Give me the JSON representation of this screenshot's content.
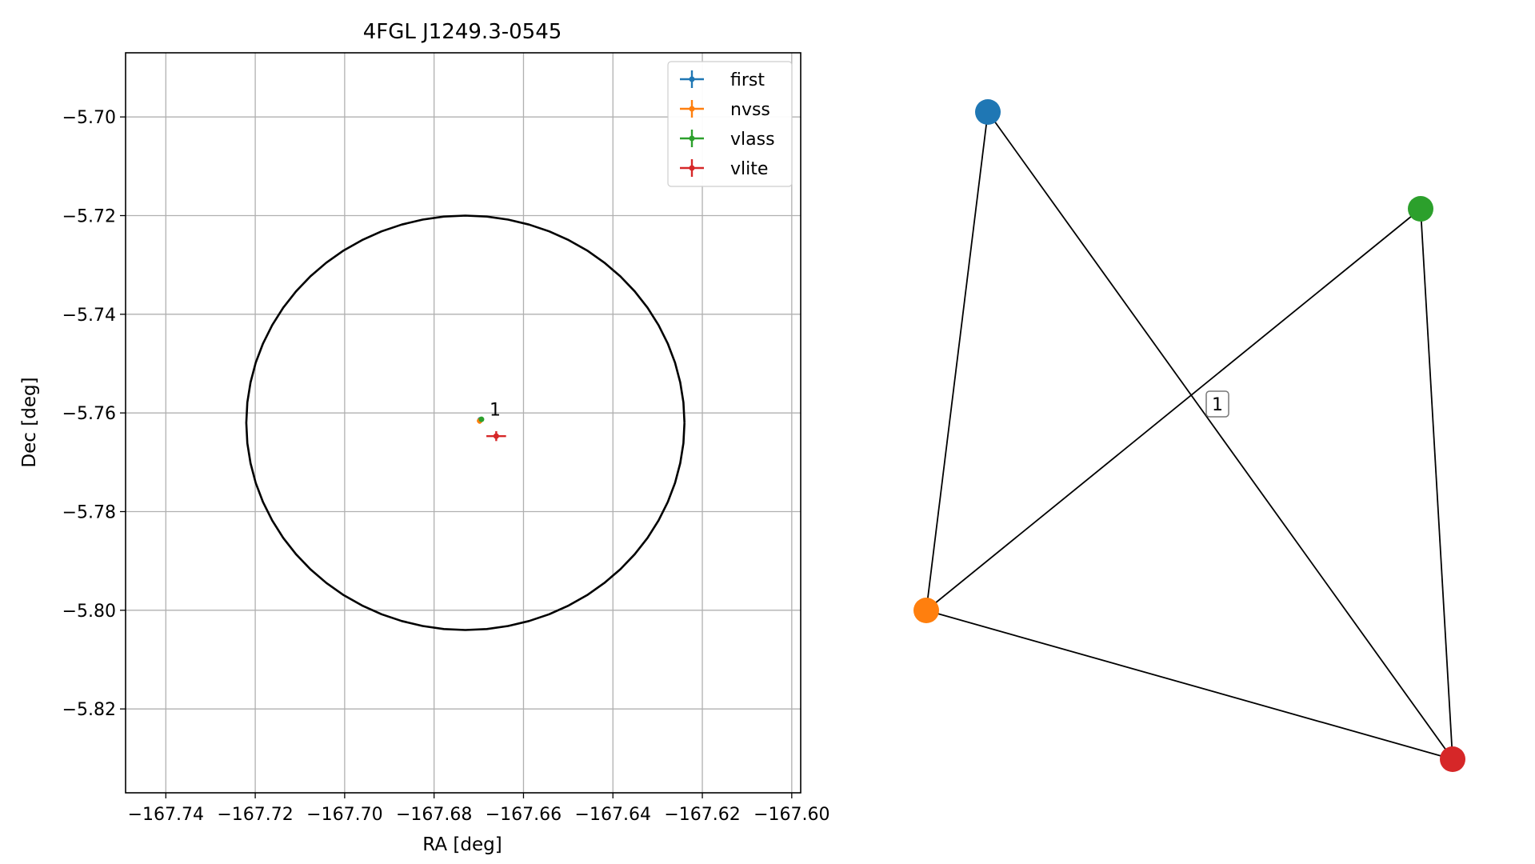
{
  "chart_data": [
    {
      "type": "scatter",
      "title": "4FGL J1249.3-0545",
      "xlabel": "RA [deg]",
      "ylabel": "Dec [deg]",
      "xlim": [
        -167.749,
        -167.598
      ],
      "ylim": [
        -5.837,
        -5.687
      ],
      "xticks": [
        -167.74,
        -167.72,
        -167.7,
        -167.68,
        -167.66,
        -167.64,
        -167.62,
        -167.6
      ],
      "xtick_labels": [
        "−167.74",
        "−167.72",
        "−167.70",
        "−167.68",
        "−167.66",
        "−167.64",
        "−167.62",
        "−167.60"
      ],
      "yticks": [
        -5.7,
        -5.72,
        -5.74,
        -5.76,
        -5.78,
        -5.8,
        -5.82
      ],
      "ytick_labels": [
        "−5.70",
        "−5.72",
        "−5.74",
        "−5.76",
        "−5.78",
        "−5.80",
        "−5.82"
      ],
      "grid": true,
      "legend_position": "top-right",
      "series": [
        {
          "name": "first",
          "color": "#1f77b4",
          "x": -167.6697,
          "y": -5.7614,
          "xerr": 0.0004,
          "yerr": 0.0004
        },
        {
          "name": "nvss",
          "color": "#ff7f0e",
          "x": -167.6698,
          "y": -5.7616,
          "xerr": 0.0006,
          "yerr": 0.0006
        },
        {
          "name": "vlass",
          "color": "#2ca02c",
          "x": -167.6694,
          "y": -5.7613,
          "xerr": 0.0003,
          "yerr": 0.0003
        },
        {
          "name": "vlite",
          "color": "#d62728",
          "x": -167.6661,
          "y": -5.7647,
          "xerr": 0.0022,
          "yerr": 0.001
        }
      ],
      "ellipse": {
        "center_x": -167.673,
        "center_y": -5.762,
        "x_semi_axis": 0.049,
        "y_semi_axis": 0.042,
        "color": "#000000"
      },
      "annotations": [
        {
          "text": "1",
          "x": -167.6676,
          "y": -5.7605
        }
      ]
    },
    {
      "type": "network",
      "nodes": [
        {
          "id": "first",
          "color": "#1f77b4"
        },
        {
          "id": "nvss",
          "color": "#ff7f0e"
        },
        {
          "id": "vlass",
          "color": "#2ca02c"
        },
        {
          "id": "vlite",
          "color": "#d62728"
        }
      ],
      "edges": [
        [
          "first",
          "nvss"
        ],
        [
          "first",
          "vlite"
        ],
        [
          "nvss",
          "vlass"
        ],
        [
          "nvss",
          "vlite"
        ],
        [
          "vlass",
          "vlite"
        ]
      ],
      "labels": [
        {
          "text": "1"
        }
      ]
    }
  ]
}
